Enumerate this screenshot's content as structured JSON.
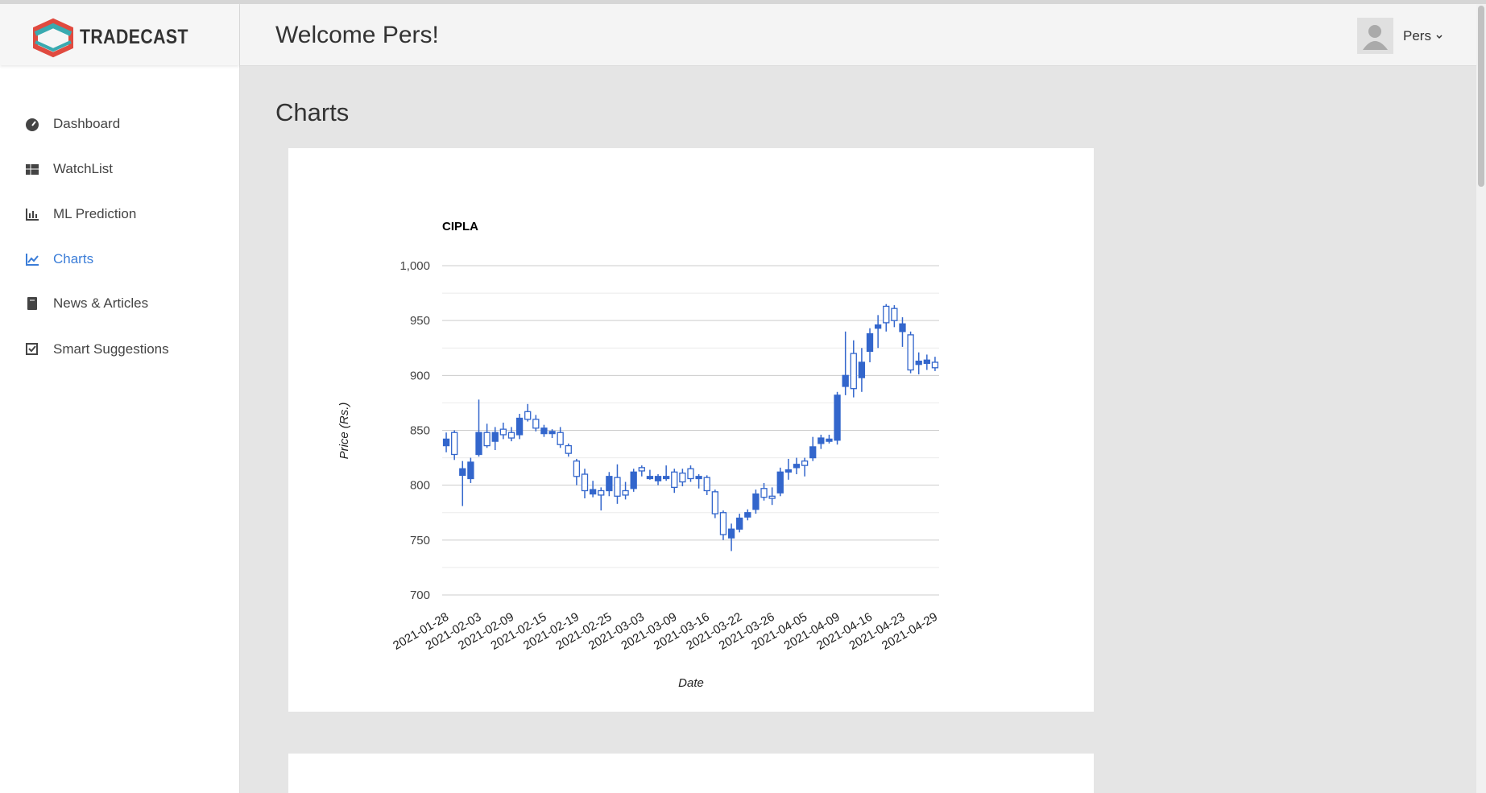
{
  "brand": "TRADECAST",
  "header": {
    "welcome": "Welcome Pers!",
    "user": "Pers"
  },
  "nav": [
    {
      "label": "Dashboard"
    },
    {
      "label": "WatchList"
    },
    {
      "label": "ML Prediction"
    },
    {
      "label": "Charts"
    },
    {
      "label": "News & Articles"
    },
    {
      "label": "Smart Suggestions"
    }
  ],
  "page_title": "Charts",
  "chart_data": {
    "type": "candlestick",
    "title": "CIPLA",
    "x_label": "Date",
    "y_label": "Price (Rs.)",
    "color": "#3366cc",
    "categories": [
      "2021-01-28",
      null,
      null,
      null,
      "2021-02-03",
      null,
      null,
      null,
      "2021-02-09",
      null,
      null,
      null,
      "2021-02-15",
      null,
      null,
      null,
      "2021-02-19",
      null,
      null,
      null,
      "2021-02-25",
      null,
      null,
      null,
      "2021-03-03",
      null,
      null,
      null,
      "2021-03-09",
      null,
      null,
      null,
      "2021-03-16",
      null,
      null,
      null,
      "2021-03-22",
      null,
      null,
      null,
      "2021-03-26",
      null,
      null,
      null,
      "2021-04-05",
      null,
      null,
      null,
      "2021-04-09",
      null,
      null,
      null,
      "2021-04-16",
      null,
      null,
      null,
      "2021-04-23",
      null,
      null,
      null,
      "2021-04-29"
    ],
    "open": [
      842,
      828,
      815,
      821,
      848,
      836,
      848,
      846,
      843,
      861,
      860,
      852,
      852,
      849,
      837,
      829,
      808,
      795,
      796,
      791,
      808,
      790,
      791,
      812,
      813,
      808,
      808,
      808,
      798,
      803,
      806,
      808,
      795,
      774,
      755,
      760,
      770,
      775,
      792,
      789,
      788,
      812,
      814,
      819,
      818,
      835,
      843,
      842,
      882,
      900,
      888,
      912,
      938,
      946,
      948,
      950,
      947,
      905,
      913,
      914,
      907
    ],
    "high": [
      848,
      850,
      822,
      825,
      878,
      856,
      853,
      857,
      853,
      865,
      874,
      864,
      855,
      851,
      853,
      838,
      824,
      815,
      804,
      798,
      812,
      819,
      803,
      815,
      818,
      814,
      810,
      818,
      815,
      815,
      818,
      810,
      809,
      796,
      777,
      765,
      774,
      778,
      796,
      802,
      798,
      816,
      824,
      825,
      825,
      844,
      846,
      846,
      885,
      940,
      932,
      925,
      943,
      955,
      965,
      964,
      953,
      940,
      921,
      919,
      917
    ],
    "low": [
      830,
      823,
      781,
      802,
      826,
      834,
      832,
      842,
      840,
      842,
      858,
      849,
      844,
      843,
      834,
      826,
      800,
      788,
      789,
      777,
      790,
      783,
      787,
      794,
      808,
      805,
      800,
      804,
      793,
      799,
      803,
      797,
      791,
      770,
      750,
      740,
      757,
      768,
      774,
      786,
      782,
      790,
      805,
      810,
      808,
      822,
      833,
      838,
      837,
      882,
      880,
      885,
      912,
      925,
      940,
      944,
      926,
      902,
      901,
      905,
      904
    ],
    "close": [
      836,
      848,
      809,
      806,
      828,
      848,
      840,
      851,
      848,
      846,
      867,
      860,
      847,
      847,
      848,
      836,
      822,
      810,
      792,
      795,
      795,
      807,
      795,
      797,
      816,
      806,
      804,
      806,
      812,
      811,
      815,
      806,
      807,
      794,
      775,
      752,
      760,
      771,
      778,
      797,
      790,
      793,
      812,
      816,
      822,
      825,
      838,
      840,
      841,
      890,
      920,
      898,
      922,
      943,
      963,
      961,
      940,
      937,
      910,
      911,
      912
    ],
    "ylim": [
      700,
      1000
    ],
    "yticks": [
      700,
      750,
      800,
      850,
      900,
      950,
      {
        "value": 1000,
        "label": "1,000"
      }
    ],
    "minor_yticks": [
      725,
      775,
      825,
      875,
      925,
      975
    ],
    "grid": true
  }
}
